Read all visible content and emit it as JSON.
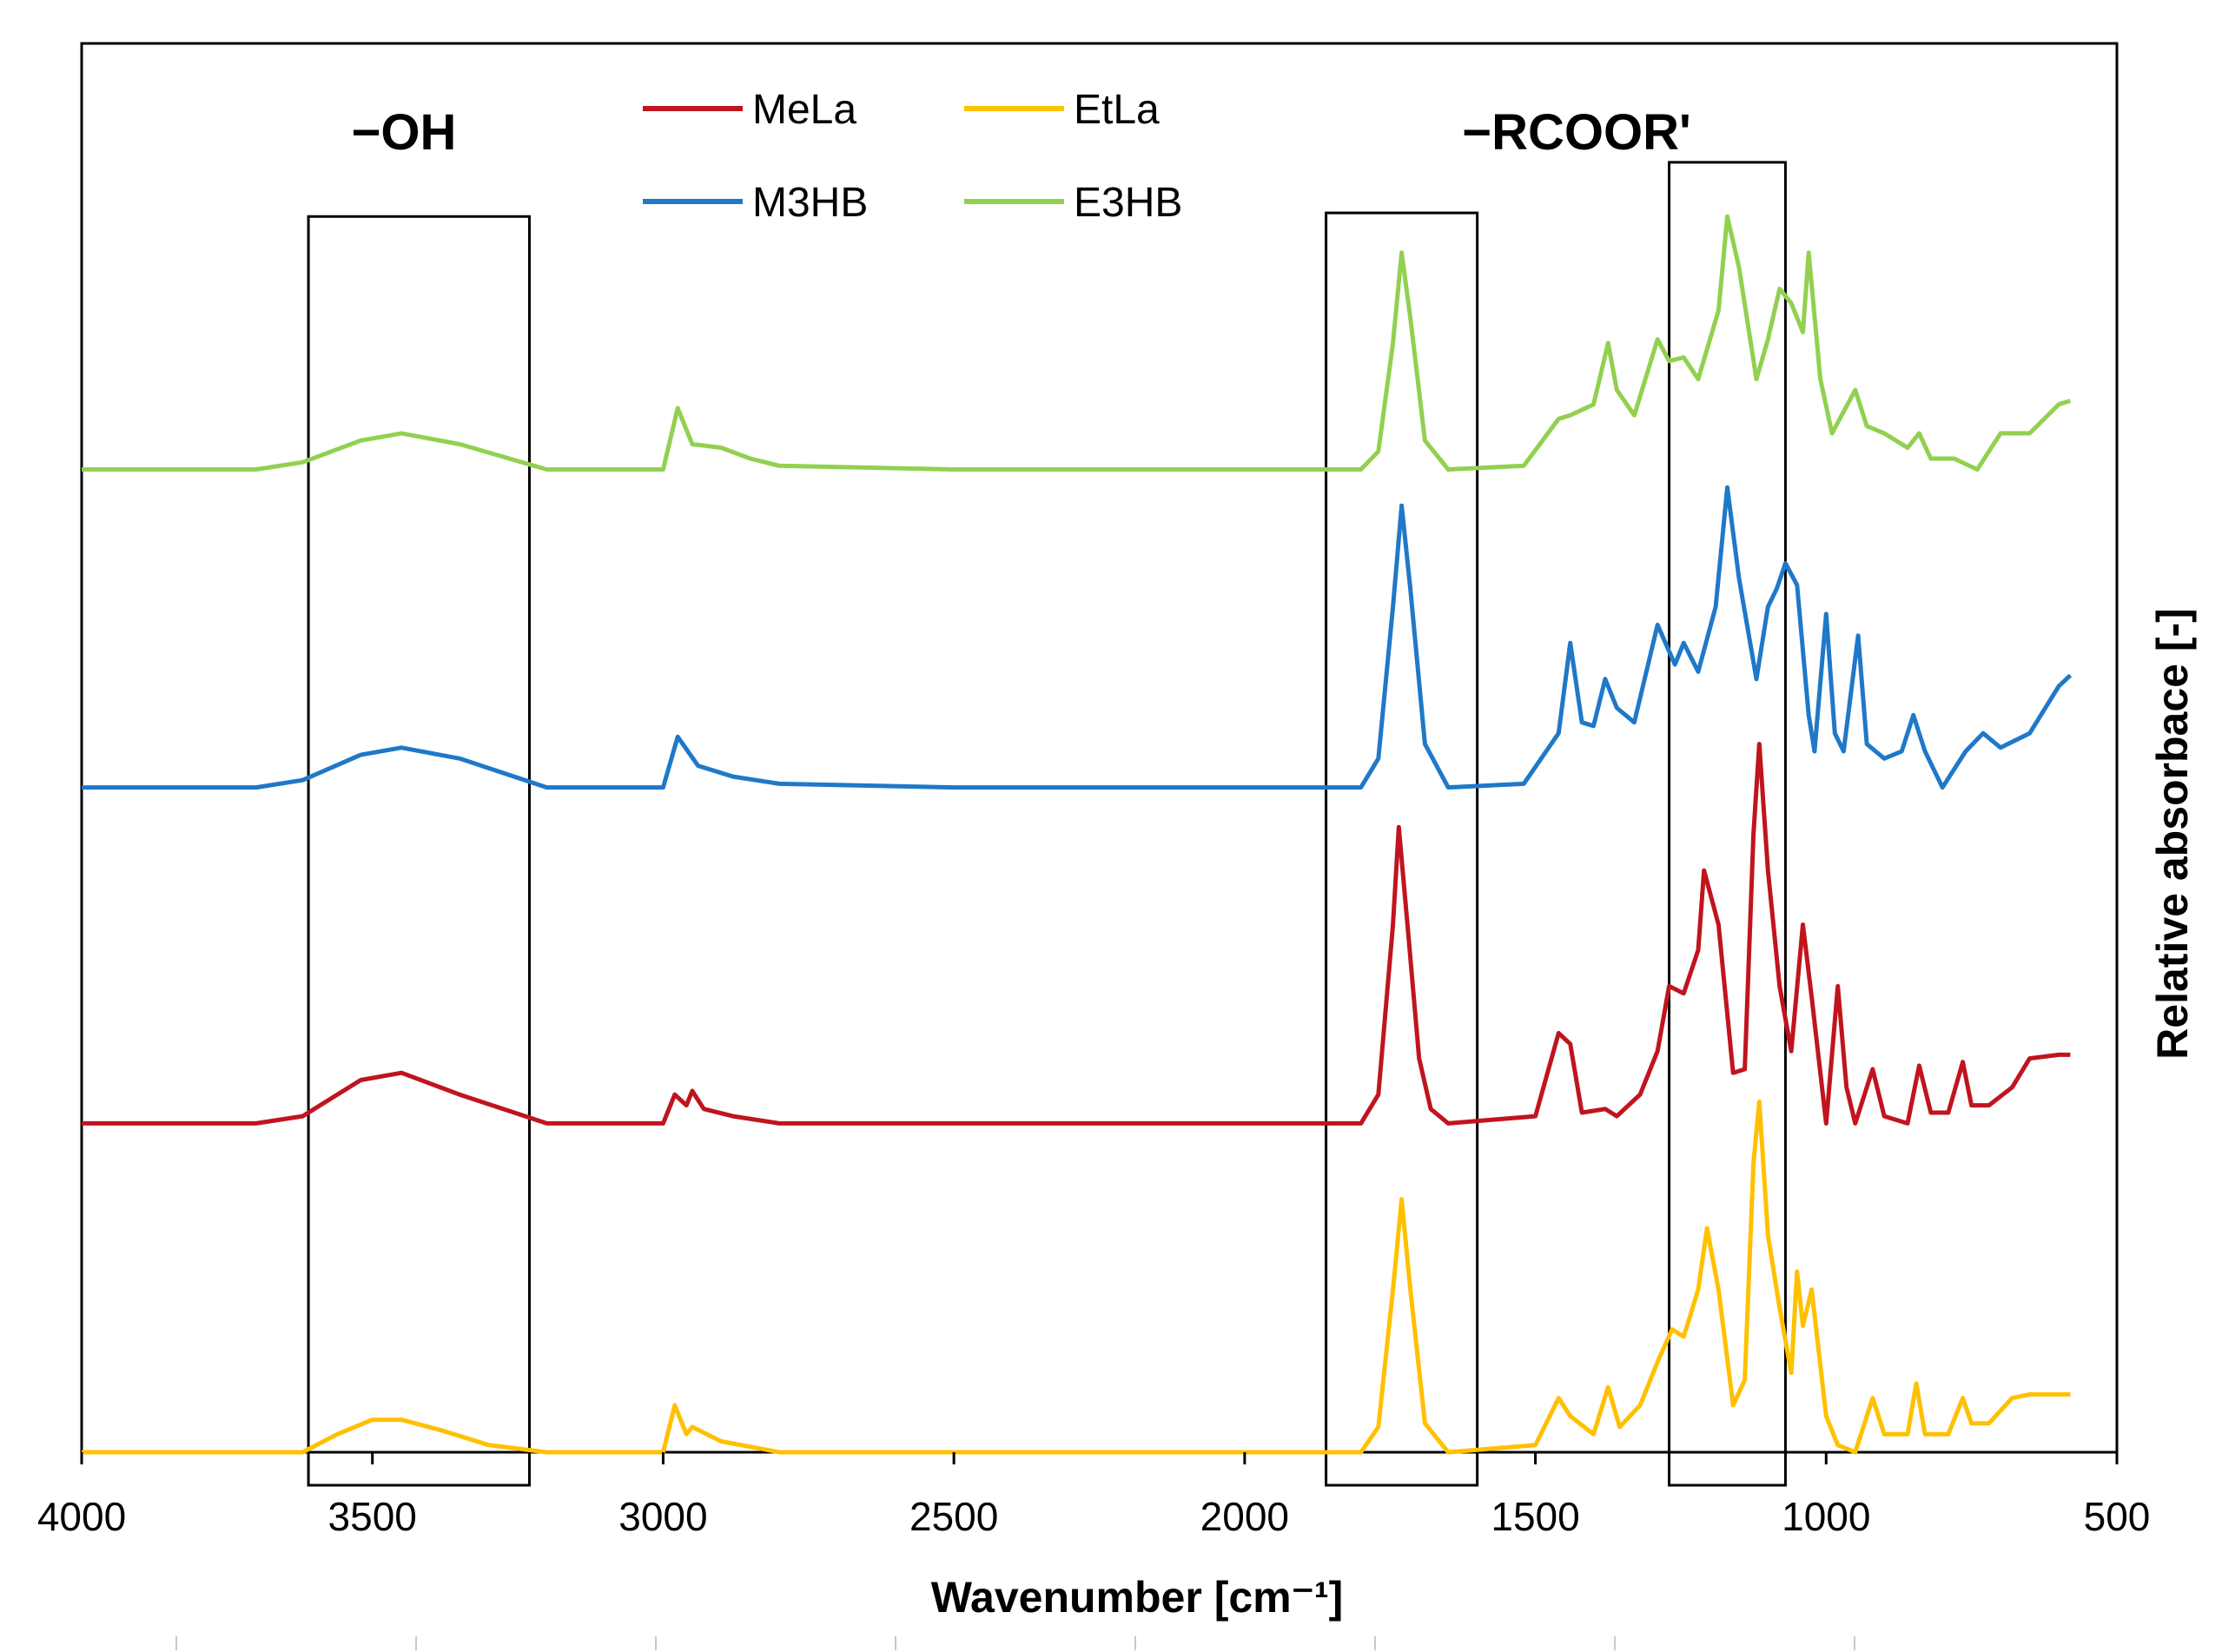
{
  "chart_data": {
    "type": "line",
    "title": "",
    "xlabel": "Wavenumber [cm⁻¹]",
    "ylabel": "Relative absorbace [-]",
    "xlim": [
      4000,
      500
    ],
    "x_reversed": true,
    "x_ticks": [
      4000,
      3500,
      3000,
      2500,
      2000,
      1500,
      1000,
      500
    ],
    "x_tick_labels": [
      "4000",
      "3500",
      "3000",
      "2500",
      "2000",
      "1500",
      "1000",
      "500"
    ],
    "ylim": [
      0,
      4.2
    ],
    "y_ticks_visible": false,
    "grid": false,
    "legend_position": "top-center",
    "annotations": [
      {
        "text": "−OH",
        "x": 3450
      },
      {
        "text": "−RCOOR'",
        "x": 1680
      }
    ],
    "highlight_regions": [
      {
        "x_range": [
          3610,
          3230
        ],
        "y_range": [
          0,
          3.42
        ]
      },
      {
        "x_range": [
          1860,
          1600
        ],
        "y_range": [
          0,
          3.43
        ]
      },
      {
        "x_range": [
          1270,
          1070
        ],
        "y_range": [
          0,
          3.57
        ]
      }
    ],
    "series": [
      {
        "name": "E3HB",
        "color": "#92d050",
        "offset": 2.72,
        "points": [
          [
            4000,
            0.0
          ],
          [
            3700,
            0.0
          ],
          [
            3620,
            0.02
          ],
          [
            3520,
            0.08
          ],
          [
            3450,
            0.1
          ],
          [
            3350,
            0.07
          ],
          [
            3200,
            0.0
          ],
          [
            3000,
            0.0
          ],
          [
            2975,
            0.17
          ],
          [
            2950,
            0.07
          ],
          [
            2900,
            0.06
          ],
          [
            2850,
            0.03
          ],
          [
            2800,
            0.01
          ],
          [
            2500,
            0.0
          ],
          [
            1900,
            0.0
          ],
          [
            1800,
            0.0
          ],
          [
            1770,
            0.05
          ],
          [
            1745,
            0.35
          ],
          [
            1730,
            0.6
          ],
          [
            1715,
            0.42
          ],
          [
            1690,
            0.08
          ],
          [
            1650,
            0.0
          ],
          [
            1520,
            0.01
          ],
          [
            1460,
            0.14
          ],
          [
            1440,
            0.15
          ],
          [
            1400,
            0.18
          ],
          [
            1375,
            0.35
          ],
          [
            1360,
            0.22
          ],
          [
            1330,
            0.15
          ],
          [
            1290,
            0.36
          ],
          [
            1270,
            0.3
          ],
          [
            1245,
            0.31
          ],
          [
            1220,
            0.25
          ],
          [
            1185,
            0.44
          ],
          [
            1170,
            0.7
          ],
          [
            1150,
            0.56
          ],
          [
            1120,
            0.25
          ],
          [
            1100,
            0.36
          ],
          [
            1080,
            0.5
          ],
          [
            1060,
            0.46
          ],
          [
            1040,
            0.38
          ],
          [
            1030,
            0.6
          ],
          [
            1010,
            0.25
          ],
          [
            990,
            0.1
          ],
          [
            950,
            0.22
          ],
          [
            930,
            0.12
          ],
          [
            900,
            0.1
          ],
          [
            860,
            0.06
          ],
          [
            840,
            0.1
          ],
          [
            820,
            0.03
          ],
          [
            780,
            0.03
          ],
          [
            740,
            0.0
          ],
          [
            700,
            0.1
          ],
          [
            650,
            0.1
          ],
          [
            600,
            0.18
          ],
          [
            580,
            0.19
          ]
        ]
      },
      {
        "name": "M3HB",
        "color": "#1f78c8",
        "offset": 1.84,
        "points": [
          [
            4000,
            0.0
          ],
          [
            3700,
            0.0
          ],
          [
            3620,
            0.02
          ],
          [
            3520,
            0.09
          ],
          [
            3450,
            0.11
          ],
          [
            3350,
            0.08
          ],
          [
            3200,
            0.0
          ],
          [
            3000,
            0.0
          ],
          [
            2975,
            0.14
          ],
          [
            2940,
            0.06
          ],
          [
            2880,
            0.03
          ],
          [
            2800,
            0.01
          ],
          [
            2500,
            0.0
          ],
          [
            1900,
            0.0
          ],
          [
            1800,
            0.0
          ],
          [
            1770,
            0.08
          ],
          [
            1745,
            0.5
          ],
          [
            1730,
            0.78
          ],
          [
            1715,
            0.55
          ],
          [
            1690,
            0.12
          ],
          [
            1650,
            0.0
          ],
          [
            1520,
            0.01
          ],
          [
            1460,
            0.15
          ],
          [
            1440,
            0.4
          ],
          [
            1420,
            0.18
          ],
          [
            1400,
            0.17
          ],
          [
            1380,
            0.3
          ],
          [
            1360,
            0.22
          ],
          [
            1330,
            0.18
          ],
          [
            1290,
            0.45
          ],
          [
            1260,
            0.34
          ],
          [
            1245,
            0.4
          ],
          [
            1220,
            0.32
          ],
          [
            1190,
            0.5
          ],
          [
            1170,
            0.83
          ],
          [
            1150,
            0.58
          ],
          [
            1120,
            0.3
          ],
          [
            1100,
            0.5
          ],
          [
            1085,
            0.55
          ],
          [
            1070,
            0.62
          ],
          [
            1050,
            0.56
          ],
          [
            1030,
            0.2
          ],
          [
            1020,
            0.1
          ],
          [
            1000,
            0.48
          ],
          [
            985,
            0.15
          ],
          [
            970,
            0.1
          ],
          [
            945,
            0.42
          ],
          [
            930,
            0.12
          ],
          [
            900,
            0.08
          ],
          [
            870,
            0.1
          ],
          [
            850,
            0.2
          ],
          [
            830,
            0.1
          ],
          [
            800,
            0.0
          ],
          [
            760,
            0.1
          ],
          [
            730,
            0.15
          ],
          [
            700,
            0.11
          ],
          [
            650,
            0.15
          ],
          [
            600,
            0.28
          ],
          [
            580,
            0.31
          ]
        ]
      },
      {
        "name": "MeLa",
        "color": "#c0141e",
        "offset": 0.91,
        "points": [
          [
            4000,
            0.0
          ],
          [
            3700,
            0.0
          ],
          [
            3620,
            0.02
          ],
          [
            3520,
            0.12
          ],
          [
            3450,
            0.14
          ],
          [
            3350,
            0.08
          ],
          [
            3200,
            0.0
          ],
          [
            3000,
            0.0
          ],
          [
            2980,
            0.08
          ],
          [
            2960,
            0.05
          ],
          [
            2950,
            0.09
          ],
          [
            2930,
            0.04
          ],
          [
            2880,
            0.02
          ],
          [
            2800,
            0.0
          ],
          [
            2000,
            0.0
          ],
          [
            1800,
            0.0
          ],
          [
            1770,
            0.08
          ],
          [
            1745,
            0.55
          ],
          [
            1735,
            0.82
          ],
          [
            1720,
            0.55
          ],
          [
            1700,
            0.18
          ],
          [
            1680,
            0.04
          ],
          [
            1650,
            0.0
          ],
          [
            1500,
            0.02
          ],
          [
            1460,
            0.25
          ],
          [
            1440,
            0.22
          ],
          [
            1420,
            0.03
          ],
          [
            1380,
            0.04
          ],
          [
            1360,
            0.02
          ],
          [
            1320,
            0.08
          ],
          [
            1290,
            0.2
          ],
          [
            1270,
            0.38
          ],
          [
            1245,
            0.36
          ],
          [
            1220,
            0.48
          ],
          [
            1210,
            0.7
          ],
          [
            1185,
            0.55
          ],
          [
            1160,
            0.14
          ],
          [
            1140,
            0.15
          ],
          [
            1125,
            0.8
          ],
          [
            1115,
            1.05
          ],
          [
            1100,
            0.7
          ],
          [
            1080,
            0.38
          ],
          [
            1060,
            0.2
          ],
          [
            1040,
            0.55
          ],
          [
            1025,
            0.35
          ],
          [
            1000,
            0.0
          ],
          [
            980,
            0.38
          ],
          [
            965,
            0.1
          ],
          [
            950,
            0.0
          ],
          [
            920,
            0.15
          ],
          [
            900,
            0.02
          ],
          [
            860,
            0.0
          ],
          [
            840,
            0.16
          ],
          [
            820,
            0.03
          ],
          [
            790,
            0.03
          ],
          [
            765,
            0.17
          ],
          [
            750,
            0.05
          ],
          [
            720,
            0.05
          ],
          [
            680,
            0.1
          ],
          [
            650,
            0.18
          ],
          [
            600,
            0.19
          ],
          [
            580,
            0.19
          ]
        ]
      },
      {
        "name": "EtLa",
        "color": "#ffc000",
        "offset": 0.0,
        "points": [
          [
            4000,
            0.0
          ],
          [
            3700,
            0.0
          ],
          [
            3620,
            0.0
          ],
          [
            3560,
            0.05
          ],
          [
            3500,
            0.09
          ],
          [
            3450,
            0.09
          ],
          [
            3380,
            0.06
          ],
          [
            3300,
            0.02
          ],
          [
            3200,
            0.0
          ],
          [
            3000,
            0.0
          ],
          [
            2980,
            0.13
          ],
          [
            2960,
            0.05
          ],
          [
            2950,
            0.07
          ],
          [
            2900,
            0.03
          ],
          [
            2800,
            0.0
          ],
          [
            2000,
            0.0
          ],
          [
            1800,
            0.0
          ],
          [
            1770,
            0.07
          ],
          [
            1745,
            0.45
          ],
          [
            1730,
            0.7
          ],
          [
            1715,
            0.45
          ],
          [
            1690,
            0.08
          ],
          [
            1650,
            0.0
          ],
          [
            1500,
            0.02
          ],
          [
            1460,
            0.15
          ],
          [
            1440,
            0.1
          ],
          [
            1400,
            0.05
          ],
          [
            1375,
            0.18
          ],
          [
            1355,
            0.07
          ],
          [
            1320,
            0.13
          ],
          [
            1290,
            0.25
          ],
          [
            1265,
            0.34
          ],
          [
            1245,
            0.32
          ],
          [
            1220,
            0.45
          ],
          [
            1205,
            0.62
          ],
          [
            1185,
            0.45
          ],
          [
            1160,
            0.13
          ],
          [
            1140,
            0.2
          ],
          [
            1125,
            0.8
          ],
          [
            1115,
            0.97
          ],
          [
            1100,
            0.6
          ],
          [
            1080,
            0.4
          ],
          [
            1060,
            0.22
          ],
          [
            1050,
            0.5
          ],
          [
            1040,
            0.35
          ],
          [
            1025,
            0.45
          ],
          [
            1000,
            0.1
          ],
          [
            980,
            0.02
          ],
          [
            950,
            0.0
          ],
          [
            920,
            0.15
          ],
          [
            900,
            0.05
          ],
          [
            860,
            0.05
          ],
          [
            845,
            0.19
          ],
          [
            830,
            0.05
          ],
          [
            790,
            0.05
          ],
          [
            765,
            0.15
          ],
          [
            750,
            0.08
          ],
          [
            720,
            0.08
          ],
          [
            680,
            0.15
          ],
          [
            650,
            0.16
          ],
          [
            600,
            0.16
          ],
          [
            580,
            0.16
          ]
        ]
      }
    ]
  },
  "legend": {
    "entries": [
      {
        "label": "MeLa",
        "color": "#c0141e"
      },
      {
        "label": "EtLa",
        "color": "#ffc000"
      },
      {
        "label": "M3HB",
        "color": "#1f78c8"
      },
      {
        "label": "E3HB",
        "color": "#92d050"
      }
    ]
  }
}
